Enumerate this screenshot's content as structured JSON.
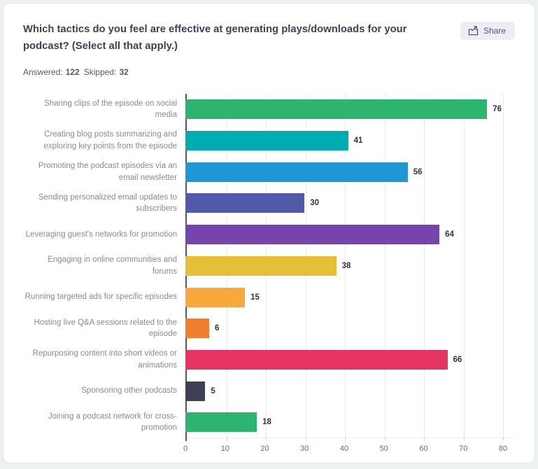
{
  "header": {
    "question": "Which tactics do you feel are effective at generating plays/downloads for your podcast? (Select all that apply.)",
    "share_label": "Share",
    "answered_label": "Answered:",
    "answered_value": "122",
    "skipped_label": "Skipped:",
    "skipped_value": "32"
  },
  "colors": {
    "page_background": "#edf1ef",
    "card_background": "#ffffff",
    "title_text": "#3d4156",
    "share_button_bg": "#ededf8",
    "share_button_text": "#4f537c",
    "category_label_text": "#8a8a8a",
    "value_label_text": "#33343c",
    "axis_line": "#54565c",
    "gridline": "#e9e9e9",
    "tick_label_text": "#6a6a6a"
  },
  "chart_data": {
    "type": "bar",
    "orientation": "horizontal",
    "title": "",
    "xlabel": "",
    "ylabel": "",
    "xlim": [
      0,
      80
    ],
    "x_ticks": [
      0,
      10,
      20,
      30,
      40,
      50,
      60,
      70,
      80
    ],
    "grid": true,
    "legend": false,
    "value_labels": true,
    "categories": [
      "Sharing clips of the episode on social media",
      "Creating blog posts summarizing and exploring key points from the episode",
      "Promoting the podcast episodes via an email newsletter",
      "Sending personalized email updates to subscribers",
      "Leveraging guest's networks for promotion",
      "Engaging in online communities and forums",
      "Running targeted ads for specific episodes",
      "Hosting live Q&A sessions related to the episode",
      "Repurposing content into short videos or animations",
      "Sponsoring other podcasts",
      "Joining a podcast network for cross-promotion"
    ],
    "values": [
      76,
      41,
      56,
      30,
      64,
      38,
      15,
      6,
      66,
      5,
      18
    ],
    "bar_colors": [
      "#2db470",
      "#01abb2",
      "#2097d4",
      "#505aa9",
      "#7544ae",
      "#e6bf39",
      "#f9a83d",
      "#f07e2c",
      "#e63462",
      "#3e4055",
      "#2db470"
    ]
  }
}
